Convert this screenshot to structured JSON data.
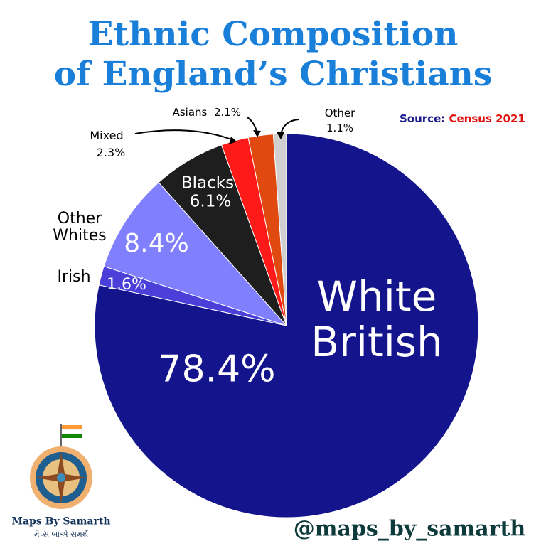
{
  "chart_data": {
    "type": "pie",
    "title": [
      "Ethnic Composition",
      "of England’s Christians"
    ],
    "source_label": "Source:",
    "source": "Census 2021",
    "categories": [
      "White British",
      "Irish",
      "Other Whites",
      "Blacks",
      "Mixed",
      "Asians",
      "Other"
    ],
    "values": [
      78.4,
      1.6,
      8.4,
      6.1,
      2.3,
      2.1,
      1.1
    ],
    "value_labels": [
      "78.4%",
      "1.6%",
      "8.4%",
      "6.1%",
      "2.3%",
      "2.1%",
      "1.1%"
    ],
    "colors": [
      "#14148c",
      "#4a3fd8",
      "#8080ff",
      "#1e1e1e",
      "#ff1a1a",
      "#e04a10",
      "#d0d0d0"
    ],
    "start_angle": 0,
    "direction": "clockwise"
  },
  "footer": {
    "handle": "@maps_by_samarth",
    "logo_name": "Maps By Samarth",
    "logo_subtitle": "મૈપ્સ બાએ સમર્થ"
  }
}
